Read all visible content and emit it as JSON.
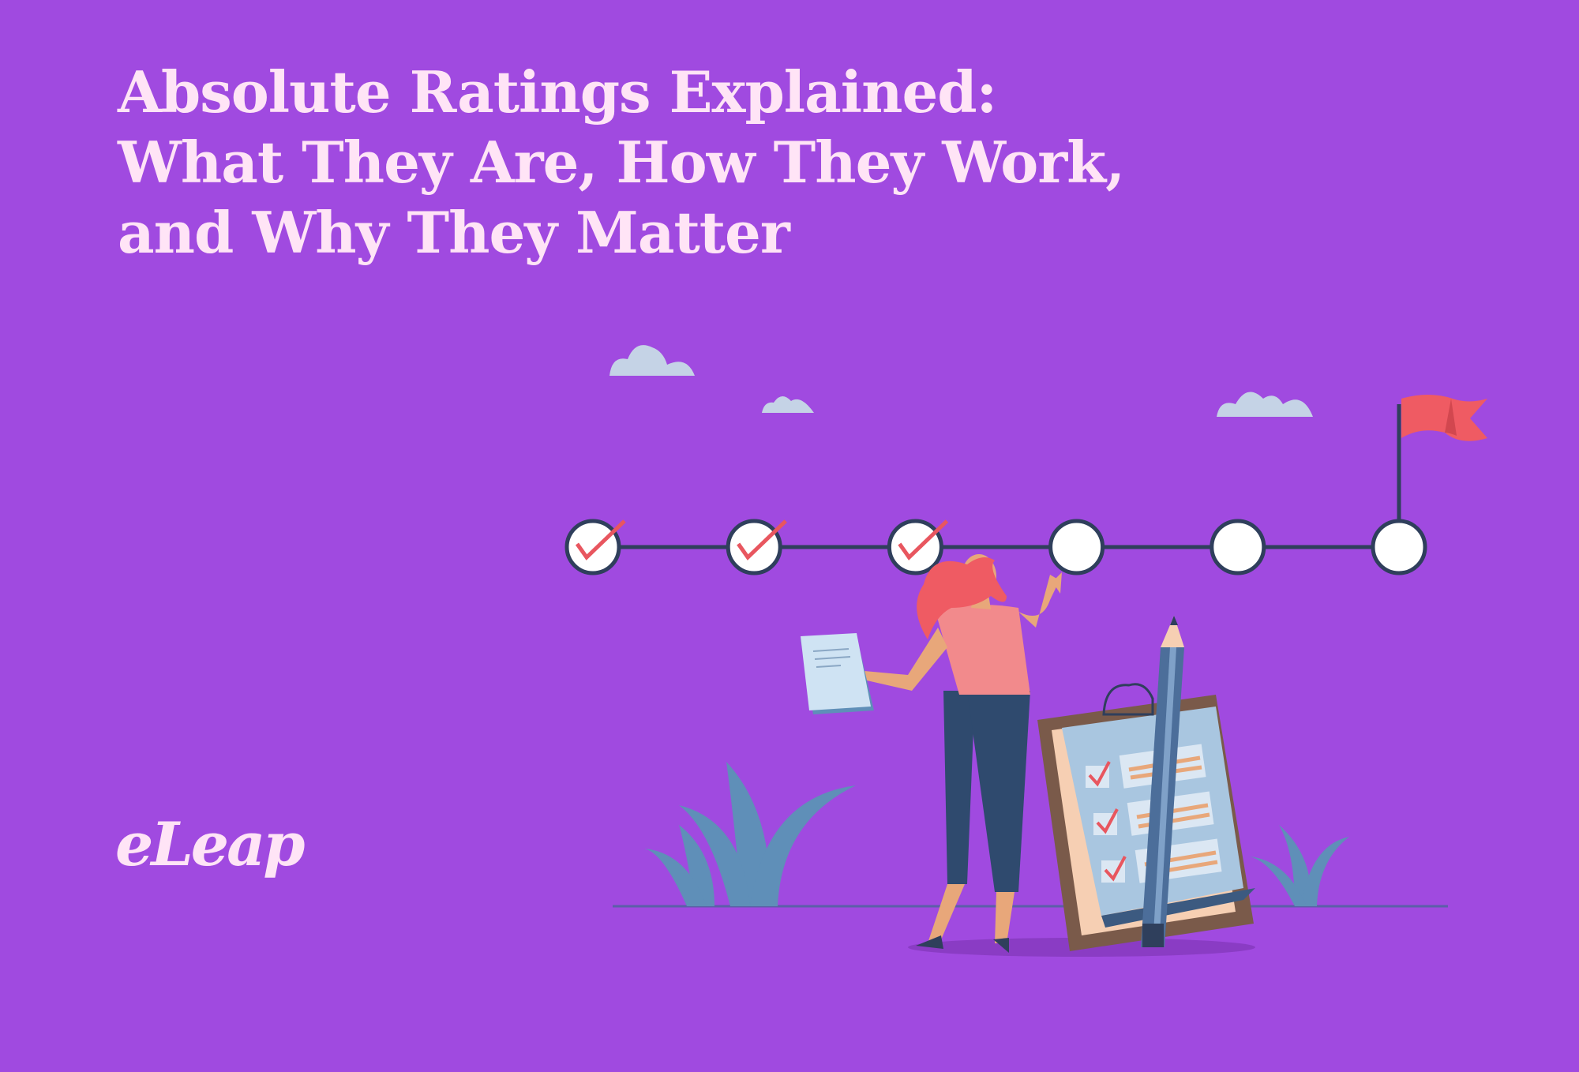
{
  "title": {
    "lines": [
      "Absolute Ratings Explained:",
      "What They Are, How They Work,",
      "and Why They Matter"
    ]
  },
  "logo": {
    "text": "eLeap"
  },
  "illustration": {
    "milestones_total": 6,
    "milestones_completed": 3,
    "icons": [
      "cloud-icon",
      "check-icon",
      "flag-icon",
      "clipboard-icon",
      "pencil-icon",
      "plant-icon",
      "paper-icon"
    ]
  },
  "colors": {
    "background": "#a04ae0",
    "title_text": "#ffe4f6",
    "check": "#e8565f",
    "flag": "#ef5b63",
    "line": "#2f3f5c",
    "cloud": "#c5d3e6",
    "plant": "#5f8fb8"
  }
}
